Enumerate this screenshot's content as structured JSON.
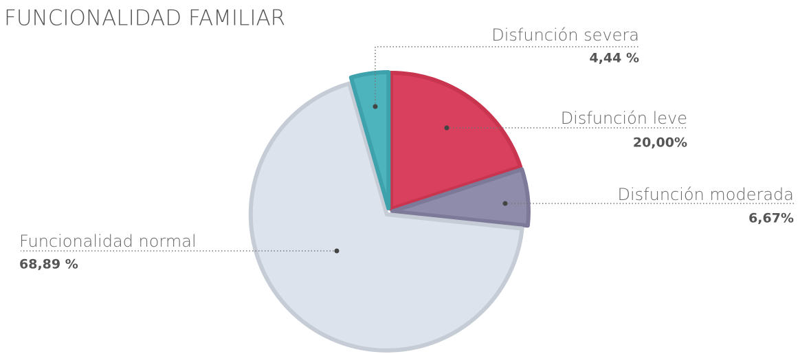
{
  "chart_data": {
    "type": "pie",
    "title": "FUNCIONALIDAD FAMILIAR",
    "categories": [
      "Disfunción leve",
      "Disfunción moderada",
      "Funcionalidad normal",
      "Disfunción severa"
    ],
    "values": [
      20.0,
      6.67,
      68.89,
      4.44
    ],
    "value_labels": [
      "20,00%",
      "6,67%",
      "68,89 %",
      "4,44 %"
    ],
    "colors": [
      "#d8405d",
      "#8f8cab",
      "#dde3ec",
      "#4db3bd"
    ]
  }
}
